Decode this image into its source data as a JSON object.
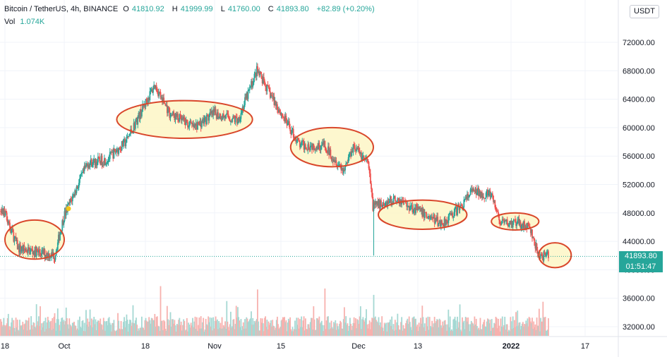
{
  "legend": {
    "symbol": "Bitcoin / TetherUS, 4h, BINANCE",
    "open_label": "O",
    "open": "41810.92",
    "high_label": "H",
    "high": "41999.99",
    "low_label": "L",
    "low": "41760.00",
    "close_label": "C",
    "close": "41893.80",
    "change": "+82.89 (+0.20%)",
    "volume_label": "Vol",
    "volume": "1.074K"
  },
  "currency_button": "USDT",
  "last_price": {
    "value": "41893.80",
    "countdown": "01:51:47"
  },
  "colors": {
    "up": "#26a69a",
    "down": "#ef5350",
    "up_volume": "#a5d8d3",
    "down_volume": "#f7b1ae",
    "ellipse_stroke": "#d9472b",
    "ellipse_fill": "#fdf6c5",
    "marker": "#f5c518",
    "grid": "#f0f3fa"
  },
  "chart_data": {
    "type": "candlestick",
    "symbol": "Bitcoin / TetherUS",
    "interval": "4h",
    "exchange": "BINANCE",
    "y_axis_position": "right",
    "y_ticks": [
      32000,
      36000,
      40000,
      44000,
      48000,
      52000,
      56000,
      60000,
      64000,
      68000,
      72000
    ],
    "y_tick_labels": [
      "32000.00",
      "36000.00",
      "40000.00",
      "44000.00",
      "48000.00",
      "52000.00",
      "56000.00",
      "60000.00",
      "64000.00",
      "68000.00",
      "72000.00"
    ],
    "x_tick_labels": [
      "18",
      "Oct",
      "18",
      "Nov",
      "15",
      "Dec",
      "13",
      "2022",
      "17"
    ],
    "x_tick_dates": [
      "2021-09-18",
      "2021-10-01",
      "2021-10-18",
      "2021-11-01",
      "2021-11-15",
      "2021-12-01",
      "2021-12-13",
      "2022-01-01",
      "2022-01-17"
    ],
    "price_path": [
      [
        "2021-09-18",
        48000
      ],
      [
        "2021-09-21",
        43000
      ],
      [
        "2021-09-25",
        42500
      ],
      [
        "2021-09-29",
        42000
      ],
      [
        "2021-10-01",
        47500
      ],
      [
        "2021-10-06",
        55000
      ],
      [
        "2021-10-10",
        55500
      ],
      [
        "2021-10-14",
        58000
      ],
      [
        "2021-10-17",
        62000
      ],
      [
        "2021-10-20",
        66000
      ],
      [
        "2021-10-23",
        62000
      ],
      [
        "2021-10-28",
        60000
      ],
      [
        "2021-11-01",
        62000
      ],
      [
        "2021-11-06",
        61000
      ],
      [
        "2021-11-10",
        68000
      ],
      [
        "2021-11-13",
        64500
      ],
      [
        "2021-11-16",
        61000
      ],
      [
        "2021-11-19",
        57500
      ],
      [
        "2021-11-24",
        57500
      ],
      [
        "2021-11-28",
        54000
      ],
      [
        "2021-11-30",
        57500
      ],
      [
        "2021-12-03",
        55000
      ],
      [
        "2021-12-04",
        49000
      ],
      [
        "2021-12-09",
        50000
      ],
      [
        "2021-12-14",
        48000
      ],
      [
        "2021-12-18",
        46500
      ],
      [
        "2021-12-22",
        49000
      ],
      [
        "2021-12-24",
        51000
      ],
      [
        "2021-12-28",
        50500
      ],
      [
        "2021-12-30",
        46500
      ],
      [
        "2022-01-03",
        46500
      ],
      [
        "2022-01-05",
        46000
      ],
      [
        "2022-01-07",
        42000
      ],
      [
        "2022-01-09",
        41900
      ]
    ],
    "special_wicks": [
      {
        "date": "2021-12-04",
        "low": 42000
      }
    ],
    "volume_spikes": [
      "2021-12-04",
      "2021-11-10",
      "2021-10-21",
      "2021-11-24"
    ],
    "annotations": {
      "ellipses": [
        {
          "from": "2021-09-18",
          "to": "2021-10-01",
          "price_low": 41500,
          "price_high": 47000
        },
        {
          "from": "2021-10-12",
          "to": "2021-11-09",
          "price_low": 58500,
          "price_high": 63800
        },
        {
          "from": "2021-11-17",
          "to": "2021-12-04",
          "price_low": 54500,
          "price_high": 60000
        },
        {
          "from": "2021-12-05",
          "to": "2021-12-23",
          "price_low": 45700,
          "price_high": 49800
        },
        {
          "from": "2021-12-28",
          "to": "2022-01-07",
          "price_low": 45600,
          "price_high": 48000
        },
        {
          "from": "2022-01-07",
          "to": "2022-01-14",
          "price_low": 40300,
          "price_high": 43800
        }
      ],
      "marker": {
        "date": "2021-10-01",
        "price": 48600
      },
      "last_price_line": 41893.8
    }
  }
}
